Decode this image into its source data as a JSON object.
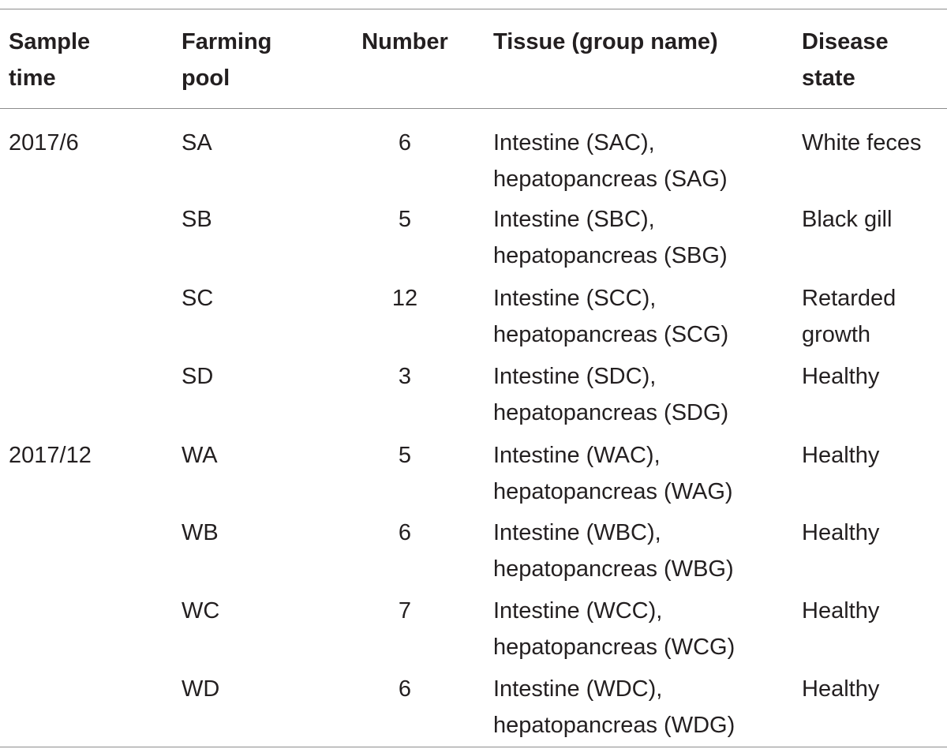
{
  "table": {
    "headers": {
      "sample_time": [
        "Sample",
        "time"
      ],
      "farming_pool": [
        "Farming",
        "pool"
      ],
      "number": "Number",
      "tissue": "Tissue (group name)",
      "disease_state": [
        "Disease",
        "state"
      ]
    },
    "rows": [
      {
        "sample_time": "2017/6",
        "farming_pool": "SA",
        "number": "6",
        "tissue": [
          "Intestine (SAC),",
          "hepatopancreas (SAG)"
        ],
        "disease_state": [
          "White feces"
        ]
      },
      {
        "sample_time": "",
        "farming_pool": "SB",
        "number": "5",
        "tissue": [
          "Intestine (SBC),",
          "hepatopancreas (SBG)"
        ],
        "disease_state": [
          "Black gill"
        ]
      },
      {
        "sample_time": "",
        "farming_pool": "SC",
        "number": "12",
        "tissue": [
          "Intestine (SCC),",
          "hepatopancreas (SCG)"
        ],
        "disease_state": [
          "Retarded",
          "growth"
        ]
      },
      {
        "sample_time": "",
        "farming_pool": "SD",
        "number": "3",
        "tissue": [
          "Intestine (SDC),",
          "hepatopancreas (SDG)"
        ],
        "disease_state": [
          "Healthy"
        ]
      },
      {
        "sample_time": "2017/12",
        "farming_pool": "WA",
        "number": "5",
        "tissue": [
          "Intestine (WAC),",
          "hepatopancreas (WAG)"
        ],
        "disease_state": [
          "Healthy"
        ]
      },
      {
        "sample_time": "",
        "farming_pool": "WB",
        "number": "6",
        "tissue": [
          "Intestine (WBC),",
          "hepatopancreas (WBG)"
        ],
        "disease_state": [
          "Healthy"
        ]
      },
      {
        "sample_time": "",
        "farming_pool": "WC",
        "number": "7",
        "tissue": [
          "Intestine (WCC),",
          "hepatopancreas (WCG)"
        ],
        "disease_state": [
          "Healthy"
        ]
      },
      {
        "sample_time": "",
        "farming_pool": "WD",
        "number": "6",
        "tissue": [
          "Intestine (WDC),",
          "hepatopancreas (WDG)"
        ],
        "disease_state": [
          "Healthy"
        ]
      }
    ]
  }
}
